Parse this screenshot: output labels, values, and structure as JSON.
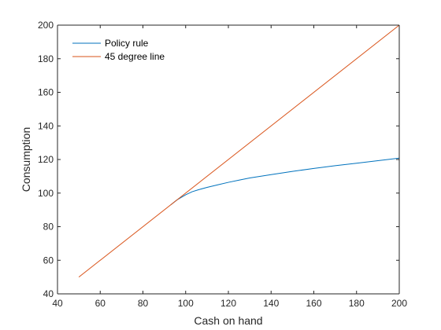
{
  "chart_data": {
    "type": "line",
    "title": "",
    "xlabel": "Cash on hand",
    "ylabel": "Consumption",
    "xlim": [
      40,
      200
    ],
    "ylim": [
      40,
      200
    ],
    "xticks": [
      40,
      60,
      80,
      100,
      120,
      140,
      160,
      180,
      200
    ],
    "yticks": [
      40,
      60,
      80,
      100,
      120,
      140,
      160,
      180,
      200
    ],
    "grid": false,
    "legend": "top-left",
    "series": [
      {
        "name": "Policy rule",
        "color": "#0072BD",
        "x": [
          93,
          96,
          100,
          103,
          106,
          110,
          115,
          120,
          125,
          130,
          140,
          150,
          160,
          170,
          180,
          190,
          200
        ],
        "y": [
          93,
          96,
          99,
          100.8,
          102,
          103.4,
          104.9,
          106.4,
          107.7,
          109,
          111,
          112.9,
          114.7,
          116.3,
          117.8,
          119.3,
          120.8
        ]
      },
      {
        "name": "45 degree line",
        "color": "#D95319",
        "x": [
          50,
          200
        ],
        "y": [
          50,
          200
        ]
      }
    ]
  }
}
